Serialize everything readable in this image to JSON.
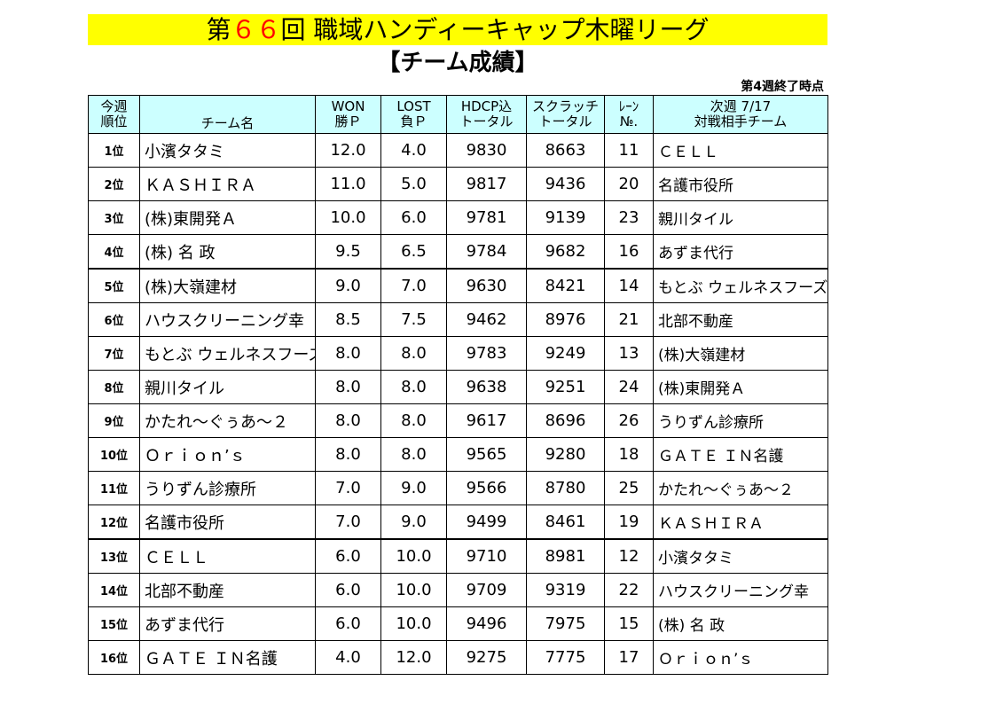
{
  "header": {
    "title_prefix": "第",
    "title_number": "６６",
    "title_suffix": "回 職域ハンディーキャップ木曜リーグ",
    "subtitle": "【チーム成績】",
    "week_status": "第4週終了時点"
  },
  "columns": {
    "rank_line1": "今週",
    "rank_line2": "順位",
    "team": "チーム名",
    "won_line1": "WON",
    "won_line2": "勝Ｐ",
    "lost_line1": "LOST",
    "lost_line2": "負Ｐ",
    "hdcp_line1": "HDCP込",
    "hdcp_line2": "トータル",
    "scratch_line1": "スクラッチ",
    "scratch_line2": "トータル",
    "lane_line1": "ﾚｰﾝ",
    "lane_line2": "№.",
    "next_line1": "次週 7/17",
    "next_line2": "対戦相手チーム"
  },
  "rows": [
    {
      "rank": "1位",
      "team": "小濱タタミ",
      "won": "12.0",
      "lost": "4.0",
      "hdcp": "9830",
      "scratch": "8663",
      "lane": "11",
      "opponent": "ＣＥＬＬ"
    },
    {
      "rank": "2位",
      "team": "ＫＡＳＨＩＲＡ",
      "won": "11.0",
      "lost": "5.0",
      "hdcp": "9817",
      "scratch": "9436",
      "lane": "20",
      "opponent": "名護市役所"
    },
    {
      "rank": "3位",
      "team": "(株)東開発Ａ",
      "won": "10.0",
      "lost": "6.0",
      "hdcp": "9781",
      "scratch": "9139",
      "lane": "23",
      "opponent": "親川タイル"
    },
    {
      "rank": "4位",
      "team": "(株) 名 政",
      "won": "9.5",
      "lost": "6.5",
      "hdcp": "9784",
      "scratch": "9682",
      "lane": "16",
      "opponent": "あずま代行"
    },
    {
      "rank": "5位",
      "team": "(株)大嶺建材",
      "won": "9.0",
      "lost": "7.0",
      "hdcp": "9630",
      "scratch": "8421",
      "lane": "14",
      "opponent": "もとぶ ウェルネスフーズ"
    },
    {
      "rank": "6位",
      "team": "ハウスクリーニング幸",
      "won": "8.5",
      "lost": "7.5",
      "hdcp": "9462",
      "scratch": "8976",
      "lane": "21",
      "opponent": "北部不動産"
    },
    {
      "rank": "7位",
      "team": "もとぶ ウェルネスフーズ",
      "won": "8.0",
      "lost": "8.0",
      "hdcp": "9783",
      "scratch": "9249",
      "lane": "13",
      "opponent": "(株)大嶺建材"
    },
    {
      "rank": "8位",
      "team": "親川タイル",
      "won": "8.0",
      "lost": "8.0",
      "hdcp": "9638",
      "scratch": "9251",
      "lane": "24",
      "opponent": "(株)東開発Ａ"
    },
    {
      "rank": "9位",
      "team": "かたれ～ぐぅあ～２",
      "won": "8.0",
      "lost": "8.0",
      "hdcp": "9617",
      "scratch": "8696",
      "lane": "26",
      "opponent": "うりずん診療所"
    },
    {
      "rank": "10位",
      "team": "Ｏｒｉｏｎ’ｓ",
      "won": "8.0",
      "lost": "8.0",
      "hdcp": "9565",
      "scratch": "9280",
      "lane": "18",
      "opponent": "ＧＡＴＥ ＩＮ名護"
    },
    {
      "rank": "11位",
      "team": "うりずん診療所",
      "won": "7.0",
      "lost": "9.0",
      "hdcp": "9566",
      "scratch": "8780",
      "lane": "25",
      "opponent": "かたれ～ぐぅあ～２"
    },
    {
      "rank": "12位",
      "team": "名護市役所",
      "won": "7.0",
      "lost": "9.0",
      "hdcp": "9499",
      "scratch": "8461",
      "lane": "19",
      "opponent": "ＫＡＳＨＩＲＡ"
    },
    {
      "rank": "13位",
      "team": "ＣＥＬＬ",
      "won": "6.0",
      "lost": "10.0",
      "hdcp": "9710",
      "scratch": "8981",
      "lane": "12",
      "opponent": "小濱タタミ"
    },
    {
      "rank": "14位",
      "team": "北部不動産",
      "won": "6.0",
      "lost": "10.0",
      "hdcp": "9709",
      "scratch": "9319",
      "lane": "22",
      "opponent": "ハウスクリーニング幸"
    },
    {
      "rank": "15位",
      "team": "あずま代行",
      "won": "6.0",
      "lost": "10.0",
      "hdcp": "9496",
      "scratch": "7975",
      "lane": "15",
      "opponent": "(株) 名 政"
    },
    {
      "rank": "16位",
      "team": "ＧＡＴＥ ＩＮ名護",
      "won": "4.0",
      "lost": "12.0",
      "hdcp": "9275",
      "scratch": "7775",
      "lane": "17",
      "opponent": "Ｏｒｉｏｎ’ｓ"
    }
  ],
  "colors": {
    "title_background": "#ffff00",
    "title_number": "#ff0000",
    "header_background": "#ccffff"
  }
}
